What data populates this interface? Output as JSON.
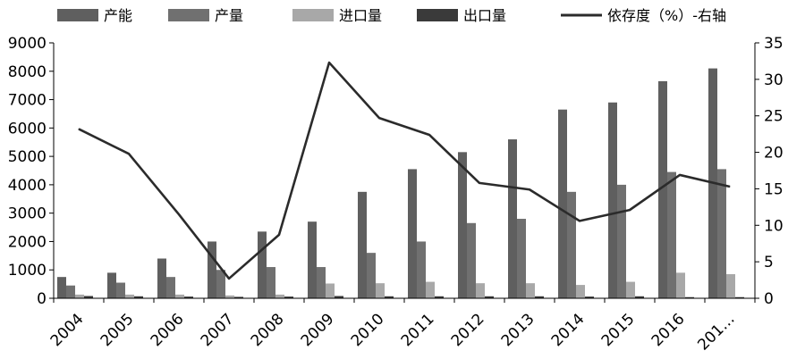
{
  "chart_data": {
    "type": "bar",
    "categories": [
      "2004",
      "2005",
      "2006",
      "2007",
      "2008",
      "2009",
      "2010",
      "2011",
      "2012",
      "2013",
      "2014",
      "2015",
      "2016",
      "201…"
    ],
    "series": [
      {
        "name": "产能",
        "type": "bar",
        "axis": "left",
        "color": "#5f5f5f",
        "values": [
          750,
          900,
          1400,
          2000,
          2350,
          2700,
          3750,
          4550,
          5150,
          5600,
          6650,
          6900,
          7650,
          8100
        ]
      },
      {
        "name": "产量",
        "type": "bar",
        "axis": "left",
        "color": "#707070",
        "values": [
          450,
          550,
          750,
          1000,
          1100,
          1100,
          1600,
          2000,
          2650,
          2800,
          3750,
          4000,
          4450,
          4550
        ]
      },
      {
        "name": "进口量",
        "type": "bar",
        "axis": "left",
        "color": "#a8a8a8",
        "values": [
          130,
          130,
          130,
          100,
          130,
          520,
          530,
          580,
          530,
          530,
          470,
          580,
          900,
          850
        ]
      },
      {
        "name": "出口量",
        "type": "bar",
        "axis": "left",
        "color": "#3a3a3a",
        "values": [
          80,
          70,
          60,
          50,
          60,
          80,
          70,
          70,
          70,
          70,
          60,
          70,
          40,
          40
        ]
      },
      {
        "name": "依存度（%）-右轴",
        "type": "line",
        "axis": "right",
        "color": "#2b2b2b",
        "values": [
          23.2,
          19.8,
          11.5,
          2.7,
          8.7,
          32.3,
          24.7,
          22.4,
          15.8,
          14.9,
          10.6,
          12.1,
          16.9,
          15.3
        ]
      }
    ],
    "y_left": {
      "min": 0,
      "max": 9000,
      "ticks": [
        "0",
        "1000",
        "2000",
        "3000",
        "4000",
        "5000",
        "6000",
        "7000",
        "8000",
        "9000"
      ]
    },
    "y_right": {
      "min": 0,
      "max": 35,
      "ticks": [
        "0",
        "5",
        "10",
        "15",
        "20",
        "25",
        "30",
        "35"
      ]
    },
    "legend_position": "top",
    "grid": false
  }
}
